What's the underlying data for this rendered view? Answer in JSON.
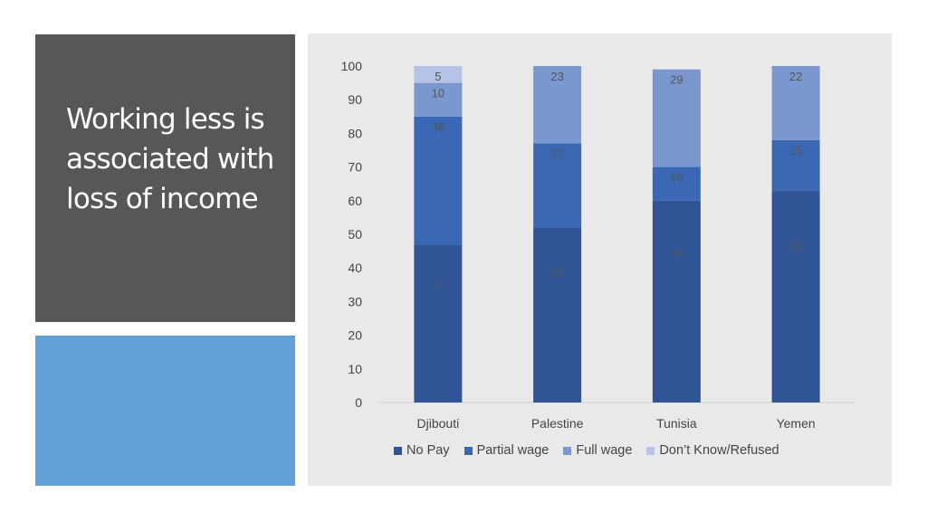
{
  "slide": {
    "title": "Working less is associated with loss of income"
  },
  "colors": {
    "title_panel": "#575757",
    "accent_panel": "#62a0d6",
    "chart_background": "#e9e9e9"
  },
  "chart_data": {
    "type": "bar",
    "stacked": true,
    "categories": [
      "Djibouti",
      "Palestine",
      "Tunisia",
      "Yemen"
    ],
    "series": [
      {
        "name": "No Pay",
        "values": [
          47,
          52,
          60,
          63
        ],
        "color": "#2f5597"
      },
      {
        "name": "Partial wage",
        "values": [
          38,
          25,
          10,
          15
        ],
        "color": "#3a68b5"
      },
      {
        "name": "Full wage",
        "values": [
          10,
          23,
          29,
          22
        ],
        "color": "#7b97cf"
      },
      {
        "name": "Don’t Know/Refused",
        "values": [
          5,
          0,
          0,
          0
        ],
        "color": "#b4c3e6"
      }
    ],
    "ylim": [
      0,
      100
    ],
    "yticks": [
      "0",
      "10",
      "20",
      "30",
      "40",
      "50",
      "60",
      "70",
      "80",
      "90",
      "100"
    ],
    "grid": false,
    "legend": "bottom",
    "data_labels": true
  }
}
